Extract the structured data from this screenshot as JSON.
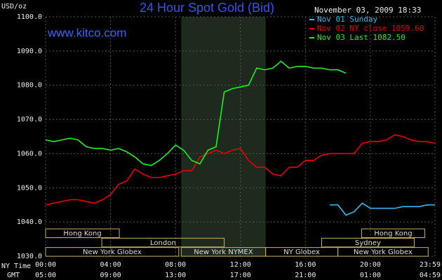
{
  "chart_data": {
    "type": "line",
    "title": "24 Hour Spot Gold (Bid)",
    "annotations": {
      "site": "www.kitco.com",
      "timestamp": "November 03, 2009 18:33"
    },
    "y_label": "USD/oz",
    "x_label": "NY Time",
    "x2_label": "GMT",
    "xlim": [
      0,
      23.98
    ],
    "xticks": [
      {
        "value": 0,
        "label": "00:00"
      },
      {
        "value": 4,
        "label": "04:00"
      },
      {
        "value": 8,
        "label": "08:00"
      },
      {
        "value": 12,
        "label": "12:00"
      },
      {
        "value": 16,
        "label": "16:00"
      },
      {
        "value": 20,
        "label": "20:00"
      },
      {
        "value": 23.98,
        "label": "23:59"
      }
    ],
    "x2ticks": [
      {
        "value": 0,
        "label": "05:00"
      },
      {
        "value": 4,
        "label": "09:00"
      },
      {
        "value": 8,
        "label": "13:00"
      },
      {
        "value": 12,
        "label": "17:00"
      },
      {
        "value": 16,
        "label": "21:00"
      },
      {
        "value": 20,
        "label": "01:00"
      },
      {
        "value": 23.98,
        "label": "04:59"
      }
    ],
    "ylim": [
      1030,
      1100
    ],
    "yticks": [
      {
        "value": 1030,
        "label": "1030.0"
      },
      {
        "value": 1040,
        "label": "1040.0"
      },
      {
        "value": 1050,
        "label": "1050.0"
      },
      {
        "value": 1060,
        "label": "1060.0"
      },
      {
        "value": 1070,
        "label": "1070.0"
      },
      {
        "value": 1080,
        "label": "1080.0"
      },
      {
        "value": 1090,
        "label": "1090.0"
      },
      {
        "value": 1100,
        "label": "1100.0"
      }
    ],
    "grid": true,
    "highlight_x": [
      8.35,
      13.55
    ],
    "x": [
      0,
      0.5,
      1,
      1.5,
      2,
      2.5,
      3,
      3.5,
      4,
      4.5,
      5,
      5.5,
      6,
      6.5,
      7,
      7.5,
      8,
      8.5,
      9,
      9.5,
      10,
      10.5,
      11,
      11.5,
      12,
      12.5,
      13,
      13.5,
      14,
      14.5,
      15,
      15.5,
      16,
      16.5,
      17,
      17.5,
      18,
      18.5,
      19,
      19.5,
      20,
      20.5,
      21,
      21.5,
      22,
      22.5,
      23,
      23.5,
      23.98
    ],
    "series": [
      {
        "name": "Nov 01 Sunday",
        "color": "#33bbee",
        "values": [
          null,
          null,
          null,
          null,
          null,
          null,
          null,
          null,
          null,
          null,
          null,
          null,
          null,
          null,
          null,
          null,
          null,
          null,
          null,
          null,
          null,
          null,
          null,
          null,
          null,
          null,
          null,
          null,
          null,
          null,
          null,
          null,
          null,
          null,
          null,
          1045,
          1045,
          1042,
          1043,
          1045.5,
          1044,
          1044,
          1044,
          1044,
          1044.5,
          1044.5,
          1044.5,
          1045,
          1045
        ]
      },
      {
        "name": "Nov 02 NY close 1059.60",
        "color": "#ee0000",
        "values": [
          1045,
          1045.5,
          1046,
          1046.5,
          1046.5,
          1046,
          1045.5,
          1046.5,
          1048,
          1051,
          1052,
          1055.5,
          1054,
          1053,
          1053,
          1053.5,
          1054,
          1055,
          1055,
          1059,
          1060,
          1061,
          1060,
          1061,
          1061.5,
          1058,
          1056,
          1056,
          1054,
          1053.5,
          1056,
          1056,
          1058,
          1058,
          1059.5,
          1060,
          1060,
          1060,
          1060,
          1063,
          1063.5,
          1063.5,
          1064,
          1065.5,
          1065,
          1064,
          1063.5,
          1063.5,
          1063
        ]
      },
      {
        "name": "Nov 03 Last 1082.50",
        "color": "#22ee22",
        "values": [
          1064,
          1063.5,
          1064,
          1064.5,
          1064,
          1062,
          1061.5,
          1061.5,
          1061,
          1061.5,
          1060.5,
          1059,
          1057,
          1056.5,
          1058,
          1060,
          1062.5,
          1061,
          1058,
          1057,
          1061,
          1062,
          1078,
          1079,
          1079.5,
          1080,
          1085,
          1084.5,
          1085,
          1087,
          1085,
          1085.5,
          1085.5,
          1085,
          1085,
          1084.5,
          1084.5,
          1083.5,
          null,
          null,
          null,
          null,
          null,
          null,
          null,
          null,
          null,
          null,
          null
        ]
      }
    ],
    "market_sessions": [
      [
        {
          "label": "Hong Kong",
          "start": 0,
          "end": 4.54
        },
        {
          "label": "Hong Kong",
          "start": 19.46,
          "end": 23.35
        }
      ],
      [
        {
          "label": "London",
          "start": 3.46,
          "end": 11.0
        },
        {
          "label": "Sydney",
          "start": 17.0,
          "end": 22.7
        }
      ],
      [
        {
          "label": "New York Globex",
          "start": 0,
          "end": 8.2
        },
        {
          "label": "New York NYMEX",
          "start": 8.35,
          "end": 13.55
        },
        {
          "label": "NY Globex",
          "start": 13.55,
          "end": 18.0
        },
        {
          "label": "New York Globex",
          "start": 18.0,
          "end": 23.56
        }
      ]
    ]
  }
}
